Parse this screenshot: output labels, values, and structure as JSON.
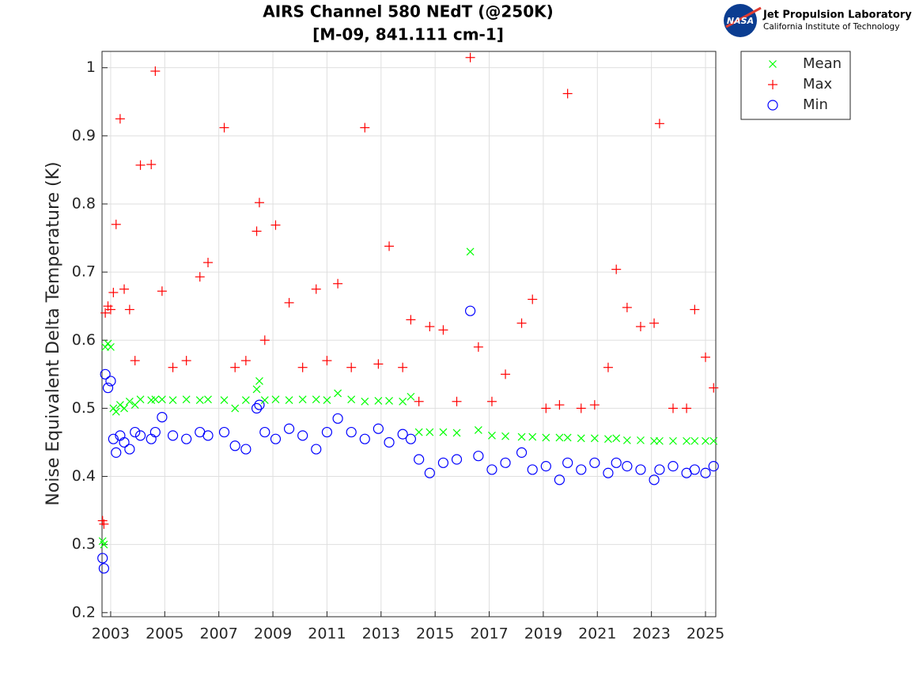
{
  "chart_data": {
    "type": "scatter",
    "title": "AIRS Channel 580 NEdT (@250K)",
    "subtitle": "[M-09, 841.111 cm-1]",
    "y_label": "Noise Equivalent Delta Temperature (K)",
    "xlim": [
      2002.68,
      2025.38
    ],
    "ylim": [
      0.194,
      1.024
    ],
    "xticks": [
      2003,
      2005,
      2007,
      2009,
      2011,
      2013,
      2015,
      2017,
      2019,
      2021,
      2023,
      2025
    ],
    "yticks": [
      0.2,
      0.3,
      0.4,
      0.5,
      0.6,
      0.7,
      0.8,
      0.9,
      1
    ],
    "grid": true,
    "legend": "outside-top-right",
    "x": [
      2002.7,
      2002.75,
      2002.8,
      2002.9,
      2003.0,
      2003.1,
      2003.2,
      2003.35,
      2003.5,
      2003.7,
      2003.9,
      2004.1,
      2004.5,
      2004.65,
      2004.9,
      2005.3,
      2005.8,
      2006.3,
      2006.6,
      2007.2,
      2007.6,
      2008.0,
      2008.4,
      2008.5,
      2008.7,
      2009.1,
      2009.6,
      2010.1,
      2010.6,
      2011.0,
      2011.4,
      2011.9,
      2012.4,
      2012.9,
      2013.3,
      2013.8,
      2014.1,
      2014.4,
      2014.8,
      2015.3,
      2015.8,
      2016.3,
      2016.6,
      2017.1,
      2017.6,
      2018.2,
      2018.6,
      2019.1,
      2019.6,
      2019.9,
      2020.4,
      2020.9,
      2021.4,
      2021.7,
      2022.1,
      2022.6,
      2023.1,
      2023.3,
      2023.8,
      2024.3,
      2024.6,
      2025.0,
      2025.3
    ],
    "series": [
      {
        "name": "Mean",
        "color": "#00ff00",
        "marker": "x",
        "values": [
          0.305,
          0.3,
          0.59,
          0.595,
          0.59,
          0.5,
          0.495,
          0.505,
          0.5,
          0.51,
          0.505,
          0.513,
          0.512,
          0.513,
          0.513,
          0.512,
          0.513,
          0.512,
          0.513,
          0.512,
          0.5,
          0.512,
          0.528,
          0.54,
          0.512,
          0.513,
          0.512,
          0.513,
          0.513,
          0.512,
          0.522,
          0.513,
          0.51,
          0.511,
          0.511,
          0.51,
          0.517,
          0.465,
          0.465,
          0.465,
          0.464,
          0.73,
          0.468,
          0.46,
          0.459,
          0.458,
          0.458,
          0.457,
          0.457,
          0.457,
          0.456,
          0.456,
          0.455,
          0.456,
          0.453,
          0.453,
          0.452,
          0.452,
          0.452,
          0.452,
          0.452,
          0.452,
          0.452
        ]
      },
      {
        "name": "Max",
        "color": "#ff0000",
        "marker": "+",
        "values": [
          0.335,
          0.33,
          0.64,
          0.65,
          0.645,
          0.67,
          0.77,
          0.925,
          0.675,
          0.645,
          0.57,
          0.857,
          0.858,
          0.995,
          0.672,
          0.56,
          0.57,
          0.693,
          0.714,
          0.912,
          0.56,
          0.57,
          0.76,
          0.802,
          0.6,
          0.769,
          0.655,
          0.56,
          0.675,
          0.57,
          0.683,
          0.56,
          0.912,
          0.565,
          0.738,
          0.56,
          0.63,
          0.51,
          0.62,
          0.615,
          0.51,
          1.015,
          0.59,
          0.51,
          0.55,
          0.625,
          0.66,
          0.5,
          0.505,
          0.962,
          0.5,
          0.505,
          0.56,
          0.704,
          0.648,
          0.62,
          0.625,
          0.918,
          0.5,
          0.5,
          0.645,
          0.575,
          0.53
        ]
      },
      {
        "name": "Min",
        "color": "#0000ff",
        "marker": "o",
        "values": [
          0.28,
          0.265,
          0.55,
          0.53,
          0.54,
          0.455,
          0.435,
          0.46,
          0.45,
          0.44,
          0.465,
          0.46,
          0.455,
          0.465,
          0.487,
          0.46,
          0.455,
          0.465,
          0.46,
          0.465,
          0.445,
          0.44,
          0.5,
          0.505,
          0.465,
          0.455,
          0.47,
          0.46,
          0.44,
          0.465,
          0.485,
          0.465,
          0.455,
          0.47,
          0.45,
          0.462,
          0.455,
          0.425,
          0.405,
          0.42,
          0.425,
          0.643,
          0.43,
          0.41,
          0.42,
          0.435,
          0.41,
          0.415,
          0.395,
          0.42,
          0.41,
          0.42,
          0.405,
          0.42,
          0.415,
          0.41,
          0.395,
          0.41,
          0.415,
          0.405,
          0.41,
          0.405,
          0.415
        ]
      }
    ]
  },
  "logo": {
    "badge": "NASA",
    "name": "Jet Propulsion Laboratory",
    "affiliation": "California Institute of Technology"
  }
}
